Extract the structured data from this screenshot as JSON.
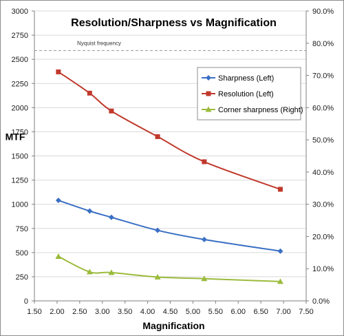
{
  "chart_data": {
    "type": "line",
    "title": "Resolution/Sharpness vs Magnification",
    "xlabel": "Magnification",
    "ylabel": "MTF",
    "y2label": "",
    "xlim": [
      1.5,
      7.5
    ],
    "ylim": [
      0,
      3000
    ],
    "y2lim": [
      0,
      0.9
    ],
    "x_ticks": [
      "1.50",
      "2.00",
      "2.50",
      "3.00",
      "3.50",
      "4.00",
      "4.50",
      "5.00",
      "5.50",
      "6.00",
      "6.50",
      "7.00",
      "7.50"
    ],
    "y_ticks": [
      "0",
      "250",
      "500",
      "750",
      "1000",
      "1250",
      "1500",
      "1750",
      "2000",
      "2250",
      "2500",
      "2750",
      "3000"
    ],
    "y2_ticks": [
      "0.0%",
      "10.0%",
      "20.0%",
      "30.0%",
      "40.0%",
      "50.0%",
      "60.0%",
      "70.0%",
      "80.0%",
      "90.0%"
    ],
    "grid": "horizontal",
    "legend_position": "right",
    "reference_line": {
      "label": "Nyquist frequency",
      "y": 2590
    },
    "series": [
      {
        "name": "Sharpness (Left)",
        "axis": "left",
        "color": "#3a6fc4",
        "marker": "diamond",
        "x": [
          2.03,
          2.72,
          3.2,
          4.22,
          5.25,
          6.93
        ],
        "y": [
          1040,
          930,
          865,
          730,
          635,
          515
        ]
      },
      {
        "name": "Resolution (Left)",
        "axis": "left",
        "color": "#c0392b",
        "marker": "square",
        "x": [
          2.03,
          2.72,
          3.2,
          4.22,
          5.25,
          6.93
        ],
        "y": [
          2370,
          2150,
          1965,
          1700,
          1440,
          1155
        ]
      },
      {
        "name": "Corner sharpness (Right)",
        "axis": "right",
        "color": "#9bbb3c",
        "marker": "triangle",
        "x": [
          2.03,
          2.72,
          3.2,
          4.22,
          5.25,
          6.93
        ],
        "y": [
          0.138,
          0.09,
          0.088,
          0.074,
          0.069,
          0.06
        ]
      }
    ]
  }
}
